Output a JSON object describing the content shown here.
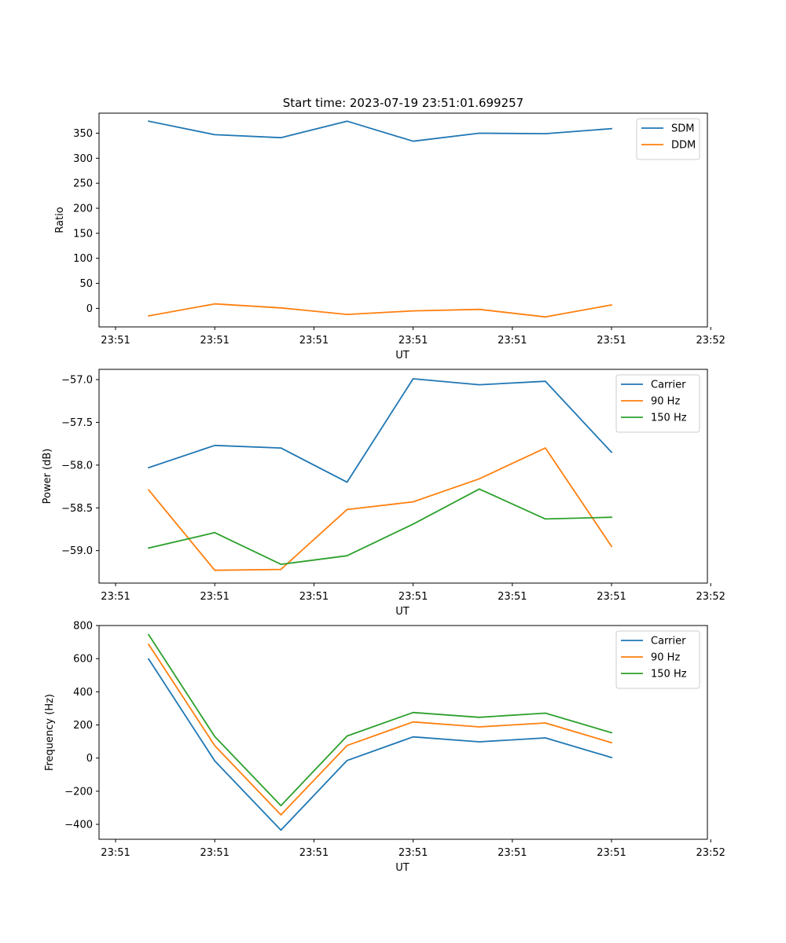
{
  "figure": {
    "title": "Start time: 2023-07-19 23:51:01.699257"
  },
  "chart_data": [
    {
      "type": "line",
      "title": "Start time: 2023-07-19 23:51:01.699257",
      "xlabel": "UT",
      "ylabel": "Ratio",
      "x": [
        1,
        2,
        3,
        4,
        5,
        6,
        7,
        8
      ],
      "xlim": [
        0.25,
        9.45
      ],
      "x_ticks": [
        0.5,
        2.0,
        3.5,
        5.0,
        6.5,
        8.0,
        9.5
      ],
      "x_tick_labels": [
        "23:51",
        "23:51",
        "23:51",
        "23:51",
        "23:51",
        "23:51",
        "23:52"
      ],
      "ylim": [
        -37,
        390
      ],
      "y_ticks": [
        0,
        50,
        100,
        150,
        200,
        250,
        300,
        350
      ],
      "y_tick_labels": [
        "0",
        "50",
        "100",
        "150",
        "200",
        "250",
        "300",
        "350"
      ],
      "legend": "top-right",
      "series": [
        {
          "name": "SDM",
          "color": "#1f77b4",
          "values": [
            374,
            347,
            341,
            374,
            334,
            350,
            349,
            359
          ]
        },
        {
          "name": "DDM",
          "color": "#ff7f0e",
          "values": [
            -15,
            9,
            1,
            -12,
            -5,
            -2,
            -17,
            7
          ]
        }
      ]
    },
    {
      "type": "line",
      "xlabel": "UT",
      "ylabel": "Power (dB)",
      "x": [
        1,
        2,
        3,
        4,
        5,
        6,
        7,
        8
      ],
      "xlim": [
        0.25,
        9.45
      ],
      "x_ticks": [
        0.5,
        2.0,
        3.5,
        5.0,
        6.5,
        8.0,
        9.5
      ],
      "x_tick_labels": [
        "23:51",
        "23:51",
        "23:51",
        "23:51",
        "23:51",
        "23:51",
        "23:52"
      ],
      "ylim": [
        -59.38,
        -56.88
      ],
      "y_ticks": [
        -59.0,
        -58.5,
        -58.0,
        -57.5,
        -57.0
      ],
      "y_tick_labels": [
        "−59.0",
        "−58.5",
        "−58.0",
        "−57.5",
        "−57.0"
      ],
      "legend": "top-right",
      "series": [
        {
          "name": "Carrier",
          "color": "#1f77b4",
          "values": [
            -58.03,
            -57.77,
            -57.8,
            -58.2,
            -56.99,
            -57.06,
            -57.02,
            -57.85
          ]
        },
        {
          "name": "90 Hz",
          "color": "#ff7f0e",
          "values": [
            -58.29,
            -59.23,
            -59.22,
            -58.52,
            -58.43,
            -58.16,
            -57.8,
            -58.95
          ]
        },
        {
          "name": "150 Hz",
          "color": "#2ca02c",
          "values": [
            -58.97,
            -58.79,
            -59.16,
            -59.06,
            -58.69,
            -58.28,
            -58.63,
            -58.61
          ]
        }
      ]
    },
    {
      "type": "line",
      "xlabel": "UT",
      "ylabel": "Frequency (Hz)",
      "x": [
        1,
        2,
        3,
        4,
        5,
        6,
        7,
        8
      ],
      "xlim": [
        0.25,
        9.45
      ],
      "x_ticks": [
        0.5,
        2.0,
        3.5,
        5.0,
        6.5,
        8.0,
        9.5
      ],
      "x_tick_labels": [
        "23:51",
        "23:51",
        "23:51",
        "23:51",
        "23:51",
        "23:51",
        "23:52"
      ],
      "ylim": [
        -490,
        800
      ],
      "y_ticks": [
        -400,
        -200,
        0,
        200,
        400,
        600,
        800
      ],
      "y_tick_labels": [
        "−400",
        "−200",
        "0",
        "200",
        "400",
        "600",
        "800"
      ],
      "legend": "top-right",
      "series": [
        {
          "name": "Carrier",
          "color": "#1f77b4",
          "values": [
            598,
            -17,
            -435,
            -15,
            128,
            98,
            122,
            3
          ]
        },
        {
          "name": "90 Hz",
          "color": "#ff7f0e",
          "values": [
            686,
            75,
            -343,
            76,
            218,
            188,
            212,
            93
          ]
        },
        {
          "name": "150 Hz",
          "color": "#2ca02c",
          "values": [
            745,
            130,
            -287,
            133,
            275,
            246,
            271,
            153
          ]
        }
      ]
    }
  ]
}
